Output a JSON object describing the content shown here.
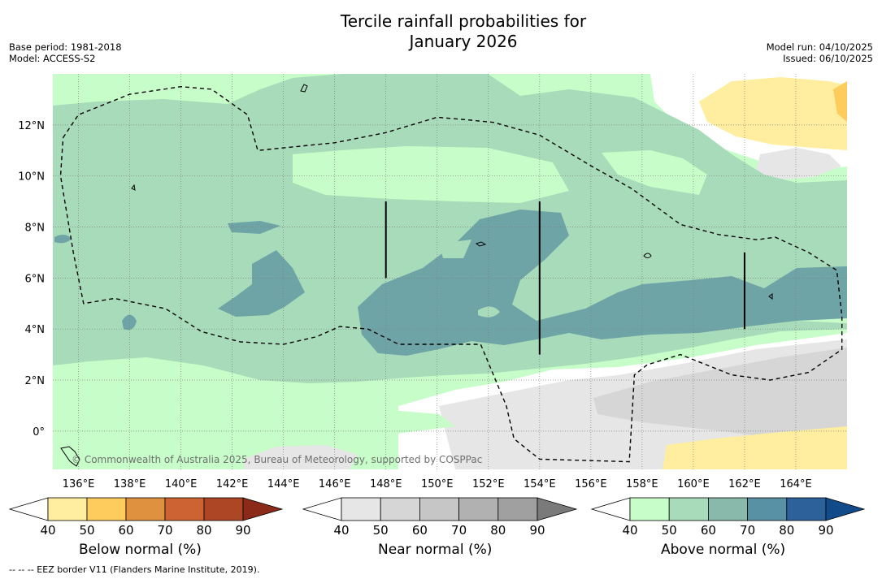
{
  "header": {
    "title_line1": "Tercile rainfall probabilities for",
    "title_line2": "January 2026",
    "base_period": "Base period: 1981-2018",
    "model": "Model: ACCESS-S2",
    "model_run": "Model run: 04/10/2025",
    "issued": "Issued: 06/10/2025"
  },
  "chart_data": {
    "type": "heatmap",
    "title": "Tercile rainfall probabilities for January 2026",
    "x_axis": {
      "range": [
        135,
        166
      ],
      "ticks": [
        136,
        138,
        140,
        142,
        144,
        146,
        148,
        150,
        152,
        154,
        156,
        158,
        160,
        162,
        164
      ],
      "tick_labels": [
        "136°E",
        "138°E",
        "140°E",
        "142°E",
        "144°E",
        "146°E",
        "148°E",
        "150°E",
        "152°E",
        "154°E",
        "156°E",
        "158°E",
        "160°E",
        "162°E",
        "164°E"
      ]
    },
    "y_axis": {
      "range": [
        -1.5,
        14
      ],
      "ticks": [
        0,
        2,
        4,
        6,
        8,
        10,
        12
      ],
      "tick_labels": [
        "0°",
        "2°N",
        "4°N",
        "6°N",
        "8°N",
        "10°N",
        "12°N"
      ]
    },
    "grid": true,
    "categories": [
      {
        "name": "Below normal (%)",
        "levels": [
          40,
          50,
          60,
          70,
          80,
          90
        ],
        "colors": [
          "#ffffff",
          "#ffeda0",
          "#fecc5c",
          "#e0913f",
          "#cd6333",
          "#ad4625",
          "#8b2a18"
        ]
      },
      {
        "name": "Near normal (%)",
        "levels": [
          40,
          50,
          60,
          70,
          80,
          90
        ],
        "colors": [
          "#ffffff",
          "#e6e6e6",
          "#d6d6d6",
          "#c6c6c6",
          "#b1b1b1",
          "#a0a0a0",
          "#7a7a7a"
        ]
      },
      {
        "name": "Above normal (%)",
        "levels": [
          40,
          50,
          60,
          70,
          80,
          90
        ],
        "colors": [
          "#ffffff",
          "#c7fdc8",
          "#a8dbb9",
          "#88b9ab",
          "#5991a4",
          "#2c6199",
          "#124b8a"
        ]
      }
    ],
    "regions": [
      {
        "category": "Above normal (%)",
        "level": 50,
        "desc": "widespread across most of the domain"
      },
      {
        "category": "Above normal (%)",
        "level": 60,
        "desc": "broad band 2°N–12°N"
      },
      {
        "category": "Above normal (%)",
        "level": 70,
        "desc": "patches near 4–8°N, 148–166°E"
      },
      {
        "category": "Near normal (%)",
        "level": 40,
        "desc": "south of 2°N east of 151°E"
      },
      {
        "category": "Below normal (%)",
        "level": 40,
        "desc": "north-east near 12°N and south-east near 0°"
      }
    ],
    "border_note": "EEZ border V11",
    "border_points": [
      [
        135.4,
        11.5
      ],
      [
        136,
        12.4
      ],
      [
        138,
        13.2
      ],
      [
        140,
        13.5
      ],
      [
        141.2,
        13.4
      ],
      [
        142.6,
        12.4
      ],
      [
        143,
        11
      ],
      [
        144,
        11.1
      ],
      [
        146,
        11.3
      ],
      [
        148,
        11.7
      ],
      [
        150,
        12.3
      ],
      [
        151.2,
        12.2
      ],
      [
        152.2,
        12.1
      ],
      [
        154,
        11.6
      ],
      [
        156,
        10.4
      ],
      [
        157.6,
        9.5
      ],
      [
        159.5,
        8.1
      ],
      [
        161,
        7.7
      ],
      [
        162.5,
        7.5
      ],
      [
        163.2,
        7.6
      ],
      [
        164.5,
        7
      ],
      [
        165.6,
        6.3
      ],
      [
        165.8,
        4.5
      ],
      [
        165.8,
        3.2
      ],
      [
        164.5,
        2.3
      ],
      [
        163,
        2
      ],
      [
        161.5,
        2.2
      ],
      [
        159.5,
        3
      ],
      [
        158.2,
        2.6
      ],
      [
        157.7,
        2.2
      ],
      [
        157.6,
        0.5
      ],
      [
        157.5,
        -1.2
      ],
      [
        154,
        -1.1
      ],
      [
        153,
        -0.3
      ],
      [
        152.7,
        1
      ],
      [
        151.7,
        3.4
      ],
      [
        150.5,
        3.4
      ],
      [
        148.5,
        3.4
      ],
      [
        147.3,
        4
      ],
      [
        146.2,
        4.1
      ],
      [
        145.3,
        3.7
      ],
      [
        144,
        3.4
      ],
      [
        142.3,
        3.5
      ],
      [
        140.8,
        3.9
      ],
      [
        139.4,
        4.8
      ],
      [
        137.4,
        5.2
      ],
      [
        136.2,
        5
      ],
      [
        135.8,
        7
      ],
      [
        135.3,
        10
      ],
      [
        135.4,
        11.5
      ]
    ],
    "line_segments": [
      [
        [
          148,
          9
        ],
        [
          148,
          6
        ]
      ],
      [
        [
          154,
          9
        ],
        [
          154,
          3
        ]
      ],
      [
        [
          162,
          7
        ],
        [
          162,
          4
        ]
      ]
    ]
  },
  "map": {
    "attribution": "© Commonwealth of Australia 2025, Bureau of Meteorology, supported by COSPPac"
  },
  "legend": {
    "below_title": "Below normal (%)",
    "near_title": "Near normal (%)",
    "above_title": "Above normal (%)"
  },
  "footnote": "--  --  -- EEZ border V11 (Flanders Marine Institute, 2019)."
}
